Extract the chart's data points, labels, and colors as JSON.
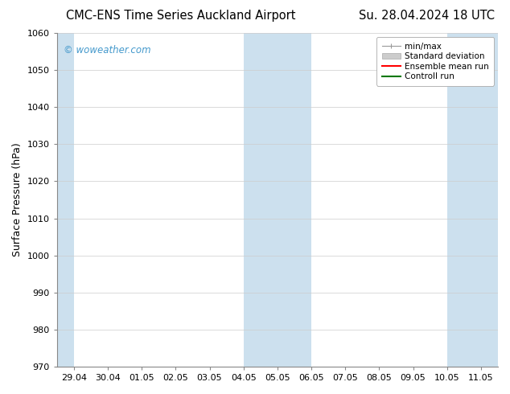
{
  "title_left": "CMC-ENS Time Series Auckland Airport",
  "title_right": "Su. 28.04.2024 18 UTC",
  "ylabel": "Surface Pressure (hPa)",
  "ylim": [
    970,
    1060
  ],
  "yticks": [
    970,
    980,
    990,
    1000,
    1010,
    1020,
    1030,
    1040,
    1050,
    1060
  ],
  "xlabels": [
    "29.04",
    "30.04",
    "01.05",
    "02.05",
    "03.05",
    "04.05",
    "05.05",
    "06.05",
    "07.05",
    "08.05",
    "09.05",
    "10.05",
    "11.05"
  ],
  "watermark": "© woweather.com",
  "watermark_color": "#4499cc",
  "bg_color": "#ffffff",
  "plot_bg_color": "#ffffff",
  "shaded_bands": [
    {
      "xstart": -0.5,
      "xend": 0.0,
      "color": "#cce0ee"
    },
    {
      "xstart": 5.0,
      "xend": 7.0,
      "color": "#cce0ee"
    },
    {
      "xstart": 11.0,
      "xend": 13.0,
      "color": "#cce0ee"
    }
  ],
  "legend_items": [
    {
      "label": "min/max",
      "color": "#999999",
      "lw": 1.0
    },
    {
      "label": "Standard deviation",
      "color": "#cccccc",
      "lw": 6
    },
    {
      "label": "Ensemble mean run",
      "color": "#ff0000",
      "lw": 1.5
    },
    {
      "label": "Controll run",
      "color": "#007700",
      "lw": 1.5
    }
  ],
  "grid_color": "#cccccc",
  "title_fontsize": 10.5,
  "tick_fontsize": 8,
  "ylabel_fontsize": 9,
  "legend_fontsize": 7.5
}
